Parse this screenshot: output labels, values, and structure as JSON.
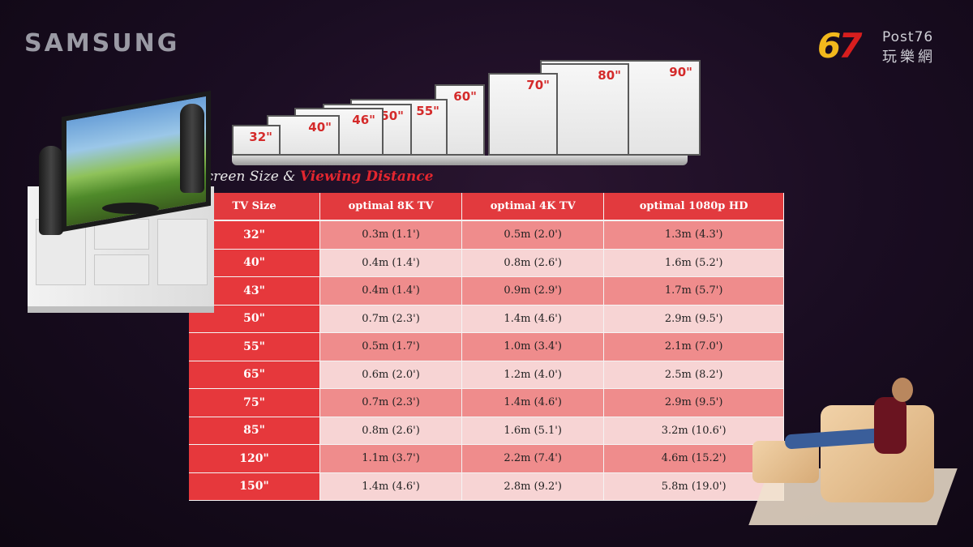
{
  "brand": "SAMSUNG",
  "logo": {
    "num_red": "7",
    "num_yellow": "6",
    "post": "Post76",
    "cn": "玩樂網"
  },
  "tv_sizes": [
    "32\"",
    "40\"",
    "46\"",
    "50\"",
    "55\"",
    "60\"",
    "70\"",
    "80\"",
    "90\""
  ],
  "title": {
    "part1": "Screen Size &",
    "part2": "Viewing Distance"
  },
  "table": {
    "headers": [
      "TV Size",
      "optimal 8K TV",
      "optimal 4K TV",
      "optimal 1080p HD"
    ],
    "rows": [
      [
        "32\"",
        "0.3m (1.1')",
        "0.5m (2.0')",
        "1.3m (4.3')"
      ],
      [
        "40\"",
        "0.4m (1.4')",
        "0.8m (2.6')",
        "1.6m (5.2')"
      ],
      [
        "43\"",
        "0.4m (1.4')",
        "0.9m (2.9')",
        "1.7m (5.7')"
      ],
      [
        "50\"",
        "0.7m (2.3')",
        "1.4m (4.6')",
        "2.9m (9.5')"
      ],
      [
        "55\"",
        "0.5m (1.7')",
        "1.0m (3.4')",
        "2.1m (7.0')"
      ],
      [
        "65\"",
        "0.6m (2.0')",
        "1.2m (4.0')",
        "2.5m (8.2')"
      ],
      [
        "75\"",
        "0.7m (2.3')",
        "1.4m (4.6')",
        "2.9m (9.5')"
      ],
      [
        "85\"",
        "0.8m (2.6')",
        "1.6m (5.1')",
        "3.2m (10.6')"
      ],
      [
        "120\"",
        "1.1m (3.7')",
        "2.2m (7.4')",
        "4.6m (15.2')"
      ],
      [
        "150\"",
        "1.4m (4.6')",
        "2.8m (9.2')",
        "5.8m (19.0')"
      ]
    ]
  },
  "colors": {
    "accent": "#e23a3e",
    "row_dark": "#ef8c8c",
    "row_light": "#f7d4d4",
    "background": "#1a0d22"
  }
}
